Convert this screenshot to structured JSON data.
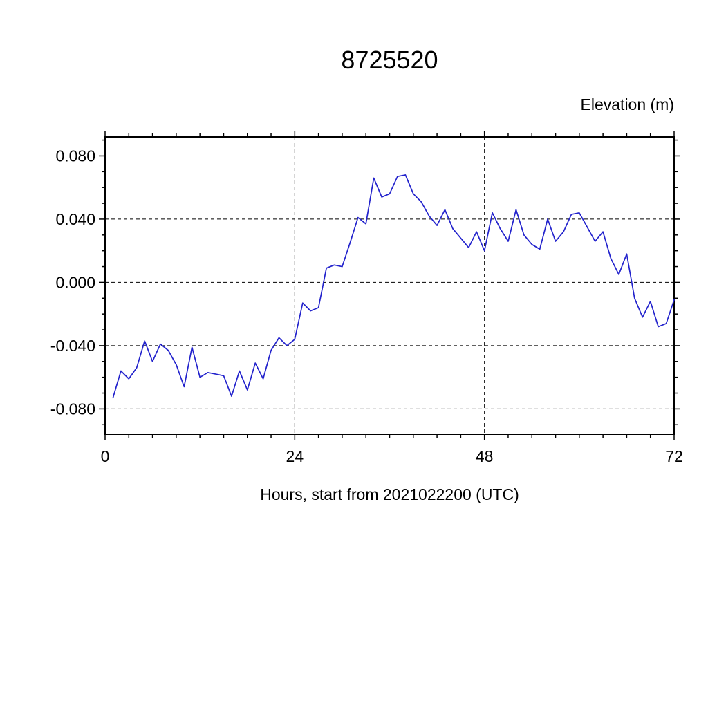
{
  "chart_data": {
    "type": "line",
    "title": "8725520",
    "xlabel": "Hours, start from 2021022200 (UTC)",
    "ylabel": "Elevation (m)",
    "legend": null,
    "grid": true,
    "xlim": [
      0,
      72
    ],
    "ylim": [
      -0.096,
      0.092
    ],
    "xticks": [
      0,
      24,
      48,
      72
    ],
    "xtick_labels": [
      "0",
      "24",
      "48",
      "72"
    ],
    "yticks": [
      -0.08,
      -0.04,
      0.0,
      0.04,
      0.08
    ],
    "ytick_labels": [
      "-0.080",
      "-0.040",
      "0.000",
      "0.040",
      "0.080"
    ],
    "x_minor_step": 3,
    "y_minor_step": 0.01,
    "line_color": "#2222cc",
    "axis_color": "#000000",
    "x": [
      1,
      2,
      3,
      4,
      5,
      6,
      7,
      8,
      9,
      10,
      11,
      12,
      13,
      14,
      15,
      16,
      17,
      18,
      19,
      20,
      21,
      22,
      23,
      24,
      25,
      26,
      27,
      28,
      29,
      30,
      31,
      32,
      33,
      34,
      35,
      36,
      37,
      38,
      39,
      40,
      41,
      42,
      43,
      44,
      45,
      46,
      47,
      48,
      49,
      50,
      51,
      52,
      53,
      54,
      55,
      56,
      57,
      58,
      59,
      60,
      61,
      62,
      63,
      64,
      65,
      66,
      67,
      68,
      69,
      70,
      71,
      72
    ],
    "y": [
      -0.073,
      -0.056,
      -0.061,
      -0.054,
      -0.037,
      -0.05,
      -0.039,
      -0.043,
      -0.052,
      -0.066,
      -0.041,
      -0.06,
      -0.057,
      -0.058,
      -0.059,
      -0.072,
      -0.056,
      -0.068,
      -0.051,
      -0.061,
      -0.043,
      -0.035,
      -0.04,
      -0.036,
      -0.013,
      -0.018,
      -0.016,
      0.009,
      0.011,
      0.01,
      0.025,
      0.041,
      0.037,
      0.066,
      0.054,
      0.056,
      0.067,
      0.068,
      0.056,
      0.051,
      0.042,
      0.036,
      0.046,
      0.034,
      0.028,
      0.022,
      0.032,
      0.02,
      0.044,
      0.034,
      0.026,
      0.046,
      0.03,
      0.024,
      0.021,
      0.04,
      0.026,
      0.032,
      0.043,
      0.044,
      0.035,
      0.026,
      0.032,
      0.015,
      0.005,
      0.018,
      -0.01,
      -0.022,
      -0.012,
      -0.028,
      -0.026,
      -0.011
    ]
  }
}
